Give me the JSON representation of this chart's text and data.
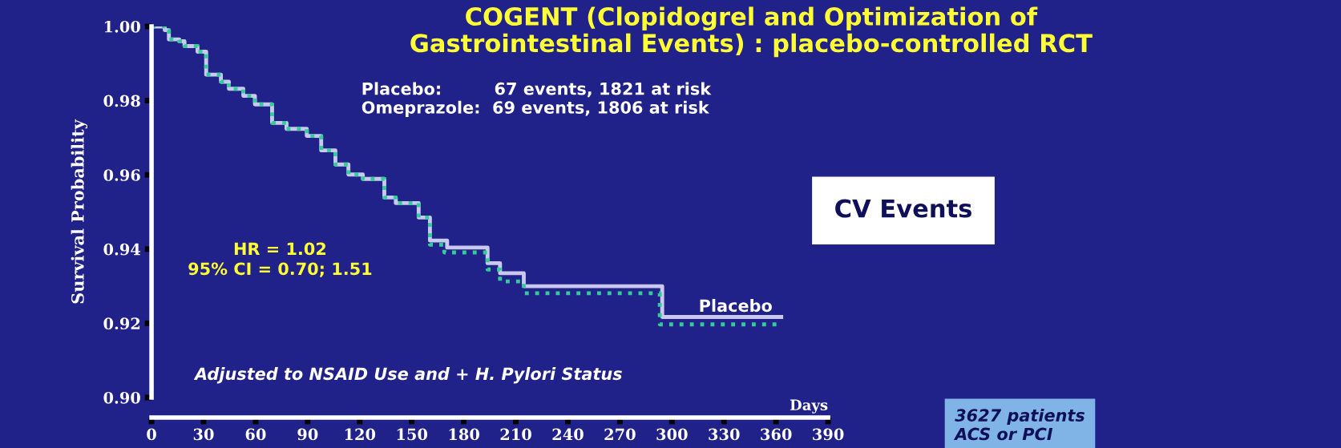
{
  "chart_data": {
    "type": "step",
    "title": "COGENT (Clopidogrel and Optimization of\nGastrointestinal Events) : placebo-controlled RCT",
    "ylabel": "Survival Probability",
    "xlabel": "Days",
    "xlim": [
      0,
      390
    ],
    "xticks": [
      0,
      30,
      60,
      90,
      120,
      150,
      180,
      210,
      240,
      270,
      300,
      330,
      360,
      390
    ],
    "ylim": [
      0.9,
      1.0
    ],
    "yticks": [
      {
        "value": 0.9,
        "label": "0.90"
      },
      {
        "value": 0.92,
        "label": "0.92"
      },
      {
        "value": 0.94,
        "label": "0.94"
      },
      {
        "value": 0.96,
        "label": "0.96"
      },
      {
        "value": 0.98,
        "label": "0.98"
      },
      {
        "value": 1.0,
        "label": "1.00"
      }
    ],
    "grid": false,
    "legend": false,
    "series": [
      {
        "name": "Placebo",
        "color": "#c8c8f0",
        "line_style": "solid",
        "x": [
          0,
          7.6,
          10,
          16,
          19,
          26.5,
          31.5,
          40,
          44.6,
          52.9,
          59.6,
          69.5,
          77.8,
          89.5,
          97.8,
          106,
          113.5,
          121.8,
          134.2,
          140.8,
          154,
          160.5,
          170.4,
          193.7,
          200.9,
          214.6,
          294.4,
          363
        ],
        "values": [
          1.0,
          0.999,
          0.9965,
          0.996,
          0.9947,
          0.9932,
          0.987,
          0.9851,
          0.9832,
          0.9813,
          0.979,
          0.974,
          0.9724,
          0.9705,
          0.9666,
          0.9628,
          0.9601,
          0.9589,
          0.9539,
          0.9524,
          0.9485,
          0.9423,
          0.9404,
          0.9362,
          0.9335,
          0.93,
          0.9217,
          0.9217
        ]
      },
      {
        "color": "#33cc99",
        "line_style": "dotted",
        "x": [
          0,
          7.6,
          10,
          16,
          19,
          26.5,
          31.5,
          40,
          44.6,
          52.9,
          59.6,
          69.5,
          77.8,
          89.5,
          97.8,
          106,
          113.5,
          121.8,
          134.2,
          140.8,
          154,
          160.5,
          168.8,
          193.7,
          200.9,
          214.6,
          293,
          360.6
        ],
        "values": [
          1.0,
          0.999,
          0.9965,
          0.996,
          0.9947,
          0.9932,
          0.987,
          0.9851,
          0.9832,
          0.9813,
          0.979,
          0.974,
          0.9724,
          0.9705,
          0.9666,
          0.9628,
          0.9601,
          0.9589,
          0.9539,
          0.9524,
          0.9485,
          0.9412,
          0.9391,
          0.9345,
          0.9313,
          0.9281,
          0.9197,
          0.9197
        ]
      }
    ],
    "annotations": [
      "Placebo:         67 events, 1821 at risk\nOmeprazole:  69 events, 1806 at risk",
      "HR = 1.02\n95% CI = 0.70; 1.51",
      "Adjusted to NSAID Use and + H. Pylori Status",
      "CV Events",
      "3627 patients\nACS or PCI"
    ]
  }
}
